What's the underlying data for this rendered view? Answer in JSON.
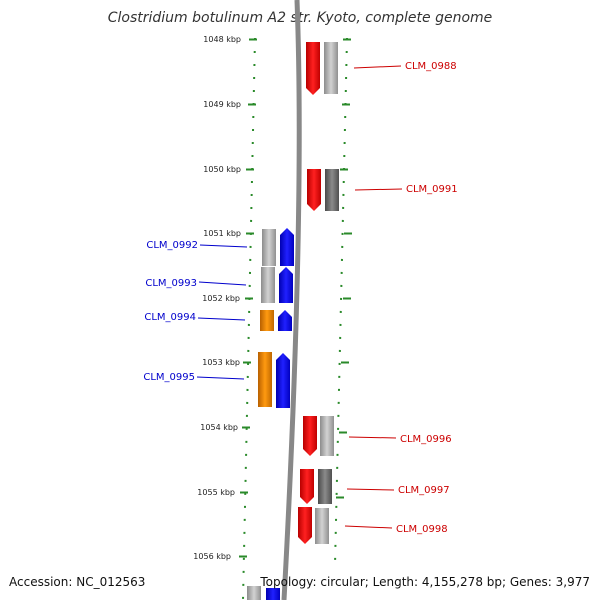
{
  "title": "Clostridium botulinum A2 str. Kyoto, complete genome",
  "footer": {
    "accession": "Accession: NC_012563",
    "topology": "Topology: circular; Length: 4,155,278 bp; Genes: 3,977"
  },
  "ruler": [
    "1048 kbp",
    "1049 kbp",
    "1050 kbp",
    "1051 kbp",
    "1052 kbp",
    "1053 kbp",
    "1054 kbp",
    "1055 kbp",
    "1056 kbp"
  ],
  "genes": [
    {
      "id": "CLM_0988",
      "strand": "forward"
    },
    {
      "id": "CLM_0991",
      "strand": "forward"
    },
    {
      "id": "CLM_0992",
      "strand": "reverse"
    },
    {
      "id": "CLM_0993",
      "strand": "reverse"
    },
    {
      "id": "CLM_0994",
      "strand": "reverse"
    },
    {
      "id": "CLM_0995",
      "strand": "reverse"
    },
    {
      "id": "CLM_0996",
      "strand": "forward"
    },
    {
      "id": "CLM_0997",
      "strand": "forward"
    },
    {
      "id": "CLM_0998",
      "strand": "forward"
    }
  ],
  "colors": {
    "forward_gene": "#ee1111",
    "reverse_gene": "#1111ee",
    "orange_gene": "#ee8800",
    "forward_label": "#cc0000",
    "reverse_label": "#0000cc",
    "backbone": "#888888",
    "tick": "#2a8a2a",
    "grey_block": "#b0b0b0",
    "dark_grey_block": "#707070"
  }
}
